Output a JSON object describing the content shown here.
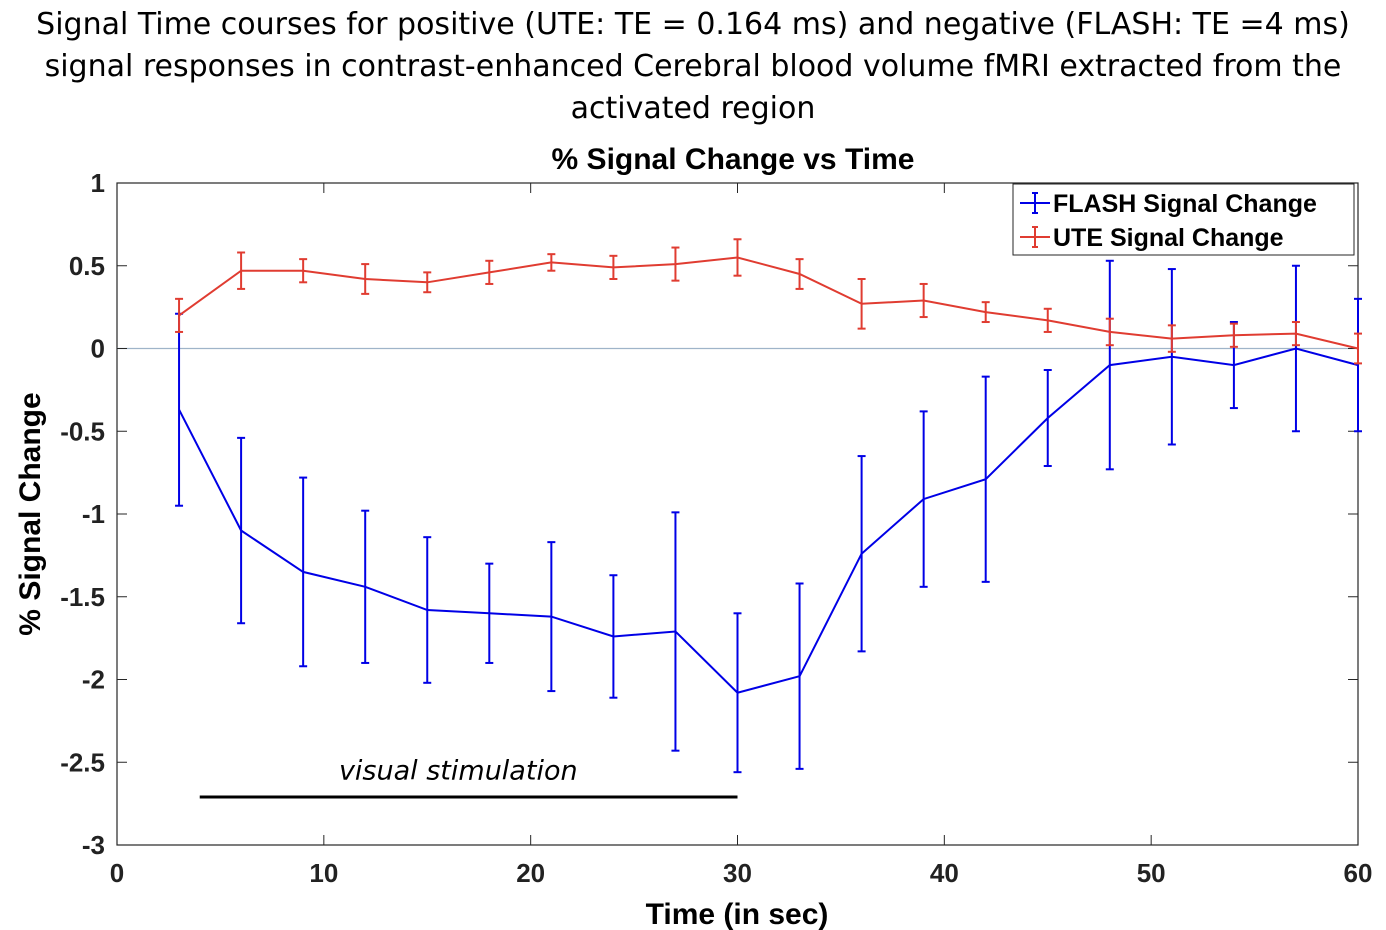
{
  "figure": {
    "suptitle_lines": [
      "Signal Time courses for positive (UTE: TE = 0.164 ms) and negative (FLASH: TE =4 ms)",
      "signal responses in contrast-enhanced Cerebral blood volume fMRI extracted from the",
      "activated region"
    ]
  },
  "chart_data": {
    "type": "line",
    "title": "% Signal Change vs Time",
    "xlabel": "Time (in sec)",
    "ylabel": "% Signal Change",
    "xlim": [
      0,
      60
    ],
    "ylim": [
      -3,
      1
    ],
    "xticks": [
      0,
      10,
      20,
      30,
      40,
      50,
      60
    ],
    "yticks": [
      1,
      0.5,
      0,
      -0.5,
      -1,
      -1.5,
      -2,
      -2.5,
      -3
    ],
    "ytick_labels": [
      "1",
      "0.5",
      "0",
      "-0.5",
      "-1",
      "-1.5",
      "-2",
      "-2.5",
      "-3"
    ],
    "grid": false,
    "zero_line": true,
    "legend_position": "top-right",
    "x": [
      3,
      6,
      9,
      12,
      15,
      18,
      21,
      24,
      27,
      30,
      33,
      36,
      39,
      42,
      45,
      48,
      51,
      54,
      57,
      60
    ],
    "series": [
      {
        "name": "FLASH Signal Change",
        "color": "#0000e6",
        "values": [
          -0.37,
          -1.1,
          -1.35,
          -1.44,
          -1.58,
          -1.6,
          -1.62,
          -1.74,
          -1.71,
          -2.08,
          -1.98,
          -1.24,
          -0.91,
          -0.79,
          -0.42,
          -0.1,
          -0.05,
          -0.1,
          0.0,
          -0.1
        ],
        "error": [
          0.58,
          0.56,
          0.57,
          0.46,
          0.44,
          0.3,
          0.45,
          0.37,
          0.72,
          0.48,
          0.56,
          0.59,
          0.53,
          0.62,
          0.29,
          0.63,
          0.53,
          0.26,
          0.5,
          0.4
        ]
      },
      {
        "name": "UTE Signal Change",
        "color": "#e03c31",
        "values": [
          0.2,
          0.47,
          0.47,
          0.42,
          0.4,
          0.46,
          0.52,
          0.49,
          0.51,
          0.55,
          0.45,
          0.27,
          0.29,
          0.22,
          0.17,
          0.1,
          0.06,
          0.08,
          0.09,
          0.0
        ],
        "error": [
          0.1,
          0.11,
          0.07,
          0.09,
          0.06,
          0.07,
          0.05,
          0.07,
          0.1,
          0.11,
          0.09,
          0.15,
          0.1,
          0.06,
          0.07,
          0.08,
          0.08,
          0.07,
          0.07,
          0.09
        ]
      }
    ],
    "annotations": [
      {
        "text": "visual stimulation",
        "line_x": [
          4,
          30
        ],
        "line_y": -2.71,
        "text_x": 16.5,
        "text_y": -2.55
      }
    ]
  }
}
